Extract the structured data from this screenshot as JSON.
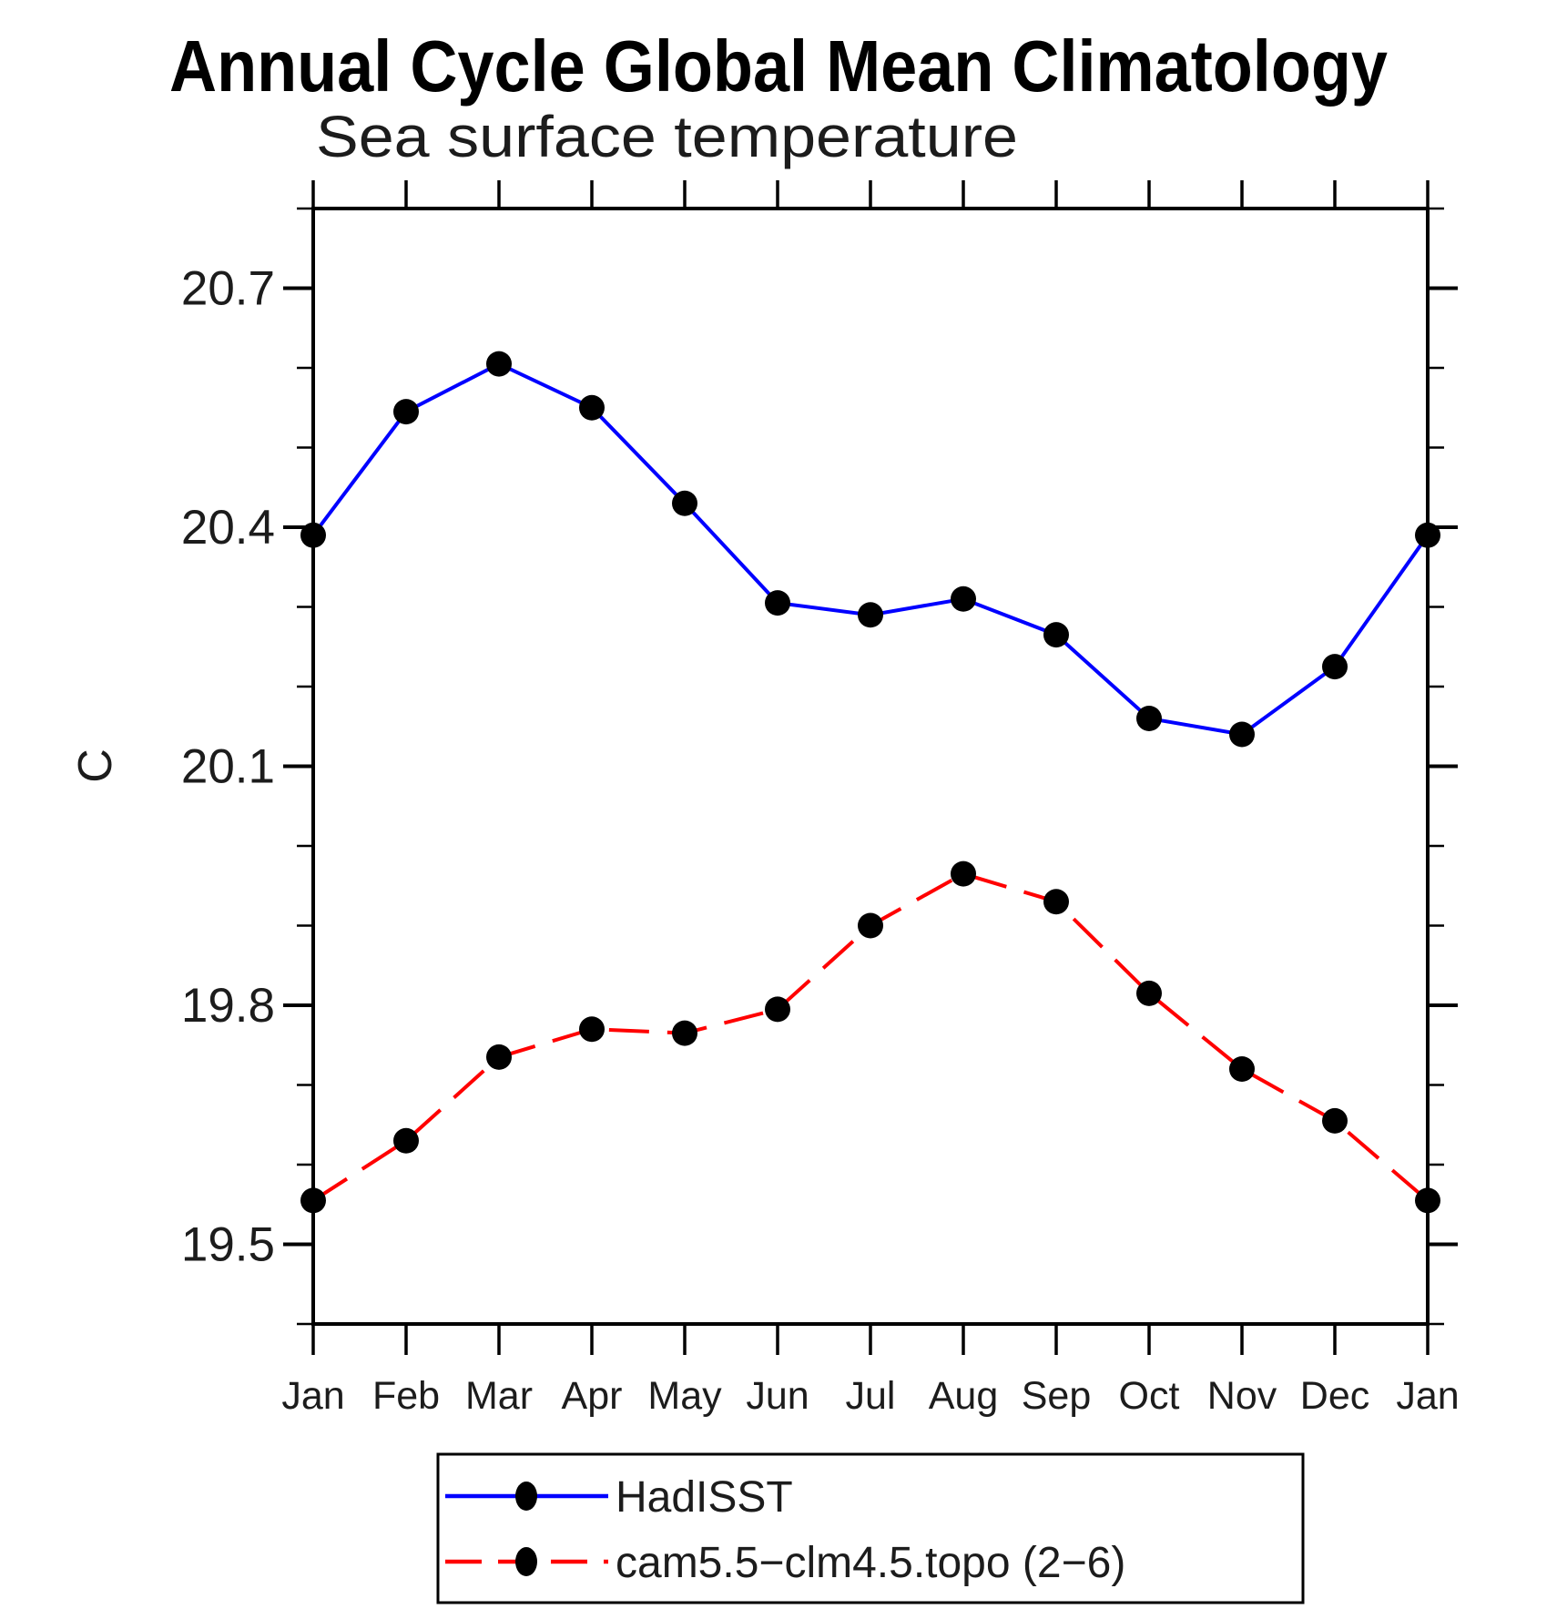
{
  "title": "Annual Cycle Global Mean Climatology",
  "subtitle": "Sea surface temperature",
  "y_axis": {
    "label": "C",
    "min": 19.4,
    "max": 20.8,
    "major_ticks": [
      19.5,
      19.8,
      20.1,
      20.4,
      20.7
    ],
    "minor_step": 0.1
  },
  "x_axis": {
    "tick_labels": [
      "Jan",
      "Feb",
      "Mar",
      "Apr",
      "May",
      "Jun",
      "Jul",
      "Aug",
      "Sep",
      "Oct",
      "Nov",
      "Dec",
      "Jan"
    ]
  },
  "legend": {
    "entries": [
      {
        "label": "HadISST",
        "color": "#0000ff",
        "line_style": "solid",
        "marker": "filled-circle"
      },
      {
        "label": "cam5.5−clm4.5.topo (2−6)",
        "color": "#ff0000",
        "line_style": "dashed",
        "marker": "filled-circle"
      }
    ]
  },
  "chart_data": {
    "type": "line",
    "title": "Annual Cycle Global Mean Climatology",
    "subtitle": "Sea surface temperature",
    "xlabel": "",
    "ylabel": "C",
    "ylim": [
      19.4,
      20.8
    ],
    "x": [
      "Jan",
      "Feb",
      "Mar",
      "Apr",
      "May",
      "Jun",
      "Jul",
      "Aug",
      "Sep",
      "Oct",
      "Nov",
      "Dec",
      "Jan"
    ],
    "grid": false,
    "legend_position": "bottom",
    "series": [
      {
        "name": "HadISST",
        "color": "#0000ff",
        "line_style": "solid",
        "marker": "filled-circle",
        "marker_color": "#000000",
        "values": [
          20.39,
          20.545,
          20.605,
          20.55,
          20.43,
          20.305,
          20.29,
          20.31,
          20.265,
          20.16,
          20.14,
          20.225,
          20.39
        ]
      },
      {
        "name": "cam5.5−clm4.5.topo (2−6)",
        "color": "#ff0000",
        "line_style": "dashed",
        "marker": "filled-circle",
        "marker_color": "#000000",
        "values": [
          19.555,
          19.63,
          19.735,
          19.77,
          19.765,
          19.795,
          19.9,
          19.965,
          19.93,
          19.815,
          19.72,
          19.655,
          19.555
        ]
      }
    ]
  },
  "colors": {
    "axis": "#000000",
    "background": "#ffffff",
    "hadisst_line": "#0000ff",
    "cam_line": "#ff0000",
    "marker": "#000000"
  }
}
